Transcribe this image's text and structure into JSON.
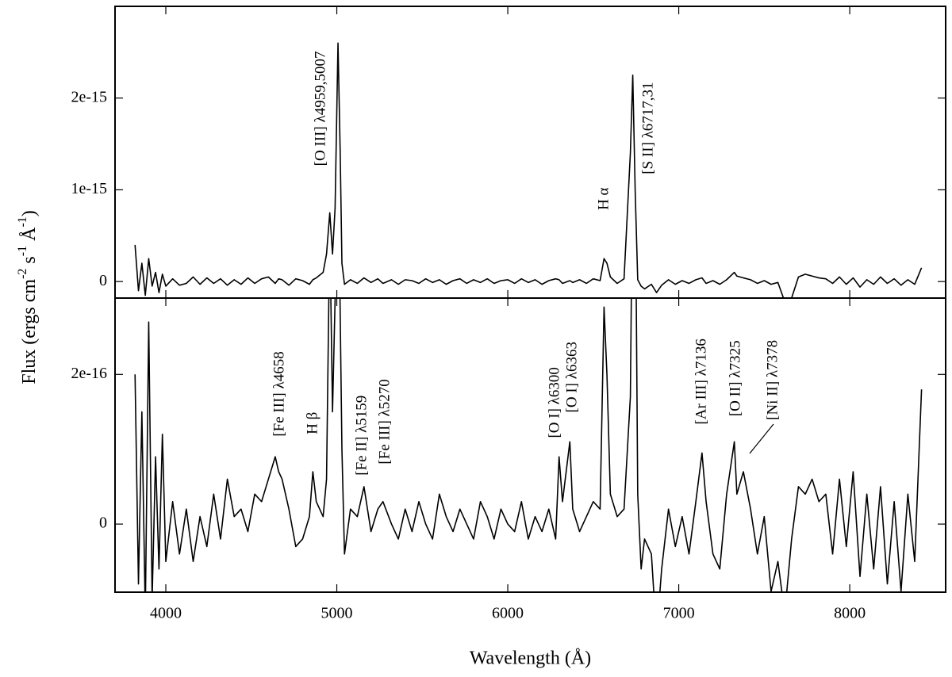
{
  "chart_data": [
    {
      "type": "line",
      "color": "#000000",
      "ylabel": [
        "Flux (ergs cm",
        "-2",
        " s",
        "-1",
        " Å",
        "-1",
        ")"
      ],
      "xlim": [
        3703,
        8561
      ],
      "ylim": [
        -1.8e-16,
        3e-15
      ],
      "xticks": [
        4000,
        5000,
        6000,
        7000,
        8000
      ],
      "yticks": [
        0,
        1e-15,
        2e-15
      ],
      "x": [
        3820,
        3840,
        3860,
        3880,
        3900,
        3920,
        3940,
        3960,
        3980,
        4000,
        4040,
        4080,
        4120,
        4160,
        4200,
        4240,
        4280,
        4320,
        4360,
        4400,
        4440,
        4480,
        4520,
        4560,
        4600,
        4640,
        4660,
        4680,
        4720,
        4760,
        4800,
        4840,
        4860,
        4880,
        4920,
        4940,
        4959,
        4975,
        4990,
        5007,
        5020,
        5030,
        5045,
        5080,
        5120,
        5159,
        5200,
        5240,
        5270,
        5320,
        5360,
        5400,
        5440,
        5480,
        5520,
        5560,
        5600,
        5640,
        5680,
        5720,
        5760,
        5800,
        5840,
        5880,
        5920,
        5960,
        6000,
        6040,
        6080,
        6120,
        6160,
        6200,
        6240,
        6280,
        6300,
        6320,
        6363,
        6380,
        6420,
        6460,
        6500,
        6540,
        6563,
        6580,
        6600,
        6640,
        6680,
        6717,
        6731,
        6745,
        6760,
        6780,
        6800,
        6840,
        6870,
        6900,
        6940,
        6980,
        7020,
        7060,
        7100,
        7136,
        7160,
        7200,
        7240,
        7280,
        7325,
        7340,
        7378,
        7420,
        7460,
        7500,
        7540,
        7580,
        7620,
        7660,
        7700,
        7740,
        7780,
        7820,
        7860,
        7900,
        7940,
        7980,
        8020,
        8060,
        8100,
        8140,
        8180,
        8220,
        8260,
        8300,
        8340,
        8380,
        8420
      ],
      "values": [
        4e-16,
        -1e-16,
        2e-16,
        -1.5e-16,
        2.5e-16,
        -5e-17,
        1e-16,
        -1.2e-16,
        8e-17,
        -5e-17,
        3e-17,
        -4e-17,
        -2e-17,
        5e-17,
        -3e-17,
        4e-17,
        -2e-17,
        3e-17,
        -4e-17,
        2e-17,
        -3e-17,
        4e-17,
        -2e-17,
        3e-17,
        5e-17,
        -2e-17,
        3e-17,
        2e-17,
        -4e-17,
        3e-17,
        1e-17,
        -3e-17,
        2e-17,
        4e-17,
        1e-16,
        3e-16,
        7.5e-16,
        3e-16,
        8e-16,
        2.6e-15,
        1.4e-15,
        2e-16,
        -3e-17,
        2e-17,
        -2e-17,
        4e-17,
        -1e-17,
        3e-17,
        -2e-17,
        2e-17,
        -3e-17,
        2e-17,
        1e-17,
        -2e-17,
        3e-17,
        -1e-17,
        2e-17,
        -3e-17,
        1e-17,
        3e-17,
        -2e-17,
        2e-17,
        -1e-17,
        3e-17,
        -2e-17,
        1e-17,
        2e-17,
        -2e-17,
        3e-17,
        -1e-17,
        2e-17,
        -3e-17,
        1e-17,
        3e-17,
        2e-17,
        -2e-17,
        1e-17,
        -1e-17,
        2e-17,
        -2e-17,
        3e-17,
        1e-17,
        2.5e-16,
        2e-16,
        5e-17,
        -2e-17,
        3e-17,
        1.4e-15,
        2.25e-15,
        1e-15,
        2e-17,
        -5e-17,
        -8e-17,
        -3e-17,
        -1.2e-16,
        -4e-17,
        2e-17,
        -3e-17,
        1e-17,
        -2e-17,
        2e-17,
        4e-17,
        -2e-17,
        1e-17,
        -3e-17,
        2e-17,
        1e-16,
        6e-17,
        4e-17,
        2e-17,
        -2e-17,
        1e-17,
        -3e-17,
        -1e-17,
        -2.2e-16,
        -1.8e-16,
        5e-17,
        8e-17,
        6e-17,
        4e-17,
        3e-17,
        -2e-17,
        5e-17,
        -3e-17,
        4e-17,
        -6e-17,
        2e-17,
        -3e-17,
        5e-17,
        -2e-17,
        3e-17,
        -4e-17,
        2e-17,
        -3e-17,
        1.5e-16
      ],
      "annotations": [
        {
          "text": "[O III] λ4959,5007",
          "x": 4909,
          "y": 1.26e-15
        },
        {
          "text": "H α",
          "x": 6566,
          "y": 7.8e-16
        },
        {
          "text": "[S II] λ6717,31",
          "x": 6826,
          "y": 1.17e-15
        }
      ]
    },
    {
      "type": "line",
      "color": "#000000",
      "xlabel": "Wavelength (Å)",
      "xlim": [
        3703,
        8561
      ],
      "ylim": [
        -9.1e-17,
        3.02e-16
      ],
      "xticks": [
        4000,
        5000,
        6000,
        7000,
        8000
      ],
      "yticks": [
        0,
        2e-16
      ],
      "x": [
        3820,
        3840,
        3860,
        3880,
        3900,
        3920,
        3940,
        3960,
        3980,
        4000,
        4040,
        4080,
        4120,
        4160,
        4200,
        4240,
        4280,
        4320,
        4360,
        4400,
        4440,
        4480,
        4520,
        4560,
        4600,
        4640,
        4660,
        4680,
        4720,
        4760,
        4800,
        4840,
        4860,
        4880,
        4920,
        4940,
        4959,
        4975,
        4990,
        5007,
        5020,
        5030,
        5045,
        5080,
        5120,
        5159,
        5200,
        5240,
        5270,
        5320,
        5360,
        5400,
        5440,
        5480,
        5520,
        5560,
        5600,
        5640,
        5680,
        5720,
        5760,
        5800,
        5840,
        5880,
        5920,
        5960,
        6000,
        6040,
        6080,
        6120,
        6160,
        6200,
        6240,
        6280,
        6300,
        6320,
        6363,
        6380,
        6420,
        6460,
        6500,
        6540,
        6563,
        6580,
        6600,
        6640,
        6680,
        6717,
        6731,
        6745,
        6760,
        6780,
        6800,
        6840,
        6870,
        6900,
        6940,
        6980,
        7020,
        7060,
        7100,
        7136,
        7160,
        7200,
        7240,
        7280,
        7325,
        7340,
        7378,
        7420,
        7460,
        7500,
        7540,
        7580,
        7620,
        7660,
        7700,
        7740,
        7780,
        7820,
        7860,
        7900,
        7940,
        7980,
        8020,
        8060,
        8100,
        8140,
        8180,
        8220,
        8260,
        8300,
        8340,
        8380,
        8420
      ],
      "values": [
        2e-16,
        -8e-17,
        1.5e-16,
        -1.2e-16,
        2.7e-16,
        -1e-16,
        9e-17,
        -6e-17,
        1.2e-16,
        -5e-17,
        3e-17,
        -4e-17,
        2e-17,
        -5e-17,
        1e-17,
        -3e-17,
        4e-17,
        -2e-17,
        6e-17,
        1e-17,
        2e-17,
        -1e-17,
        4e-17,
        3e-17,
        6e-17,
        9e-17,
        7e-17,
        6e-17,
        2e-17,
        -3e-17,
        -2e-17,
        1e-17,
        7e-17,
        3e-17,
        1e-17,
        6e-17,
        4e-16,
        1.5e-16,
        3e-16,
        5e-16,
        2.8e-16,
        1e-16,
        -4e-17,
        2e-17,
        1e-17,
        5e-17,
        -1e-17,
        2e-17,
        3e-17,
        0,
        -2e-17,
        2e-17,
        -1e-17,
        3e-17,
        0,
        -2e-17,
        4e-17,
        1e-17,
        -1e-17,
        2e-17,
        0,
        -2e-17,
        3e-17,
        1e-17,
        -2e-17,
        2e-17,
        0,
        -1e-17,
        3e-17,
        -2e-17,
        1e-17,
        -1e-17,
        2e-17,
        -2e-17,
        9e-17,
        3e-17,
        1.1e-16,
        2e-17,
        -1e-17,
        1e-17,
        3e-17,
        2e-17,
        2.9e-16,
        2e-16,
        4e-17,
        1e-17,
        2e-17,
        1.7e-16,
        5e-16,
        5e-16,
        4e-17,
        -6e-17,
        -2e-17,
        -4e-17,
        -1.5e-16,
        -6e-17,
        2e-17,
        -3e-17,
        1e-17,
        -4e-17,
        3e-17,
        9.5e-17,
        3e-17,
        -4e-17,
        -6e-17,
        4e-17,
        1.1e-16,
        4e-17,
        7e-17,
        2e-17,
        -4e-17,
        1e-17,
        -9e-17,
        -5e-17,
        -1.2e-16,
        -2e-17,
        5e-17,
        4e-17,
        6e-17,
        3e-17,
        4e-17,
        -4e-17,
        6e-17,
        -3e-17,
        7e-17,
        -7e-17,
        4e-17,
        -6e-17,
        5e-17,
        -8e-17,
        3e-17,
        -9e-17,
        4e-17,
        -5e-17,
        1.8e-16
      ],
      "annotations": [
        {
          "text": "[Fe III] λ4658",
          "x": 4668,
          "y": 1.17e-16
        },
        {
          "text": "H β",
          "x": 4863,
          "y": 1.2e-16
        },
        {
          "text": "[Fe II] λ5159",
          "x": 5151,
          "y": 6.5e-17
        },
        {
          "text": "[Fe III] λ5270",
          "x": 5285,
          "y": 8e-17
        },
        {
          "text": "[O I] λ6300",
          "x": 6278,
          "y": 1.15e-16
        },
        {
          "text": "[O I] λ6363",
          "x": 6380,
          "y": 1.49e-16
        },
        {
          "text": "[Ar III] λ7136",
          "x": 7137,
          "y": 1.33e-16
        },
        {
          "text": "[O II] λ7325",
          "x": 7336,
          "y": 1.44e-16
        },
        {
          "text": "[Ni II] λ7378",
          "x": 7555,
          "y": 1.39e-16
        }
      ]
    }
  ]
}
